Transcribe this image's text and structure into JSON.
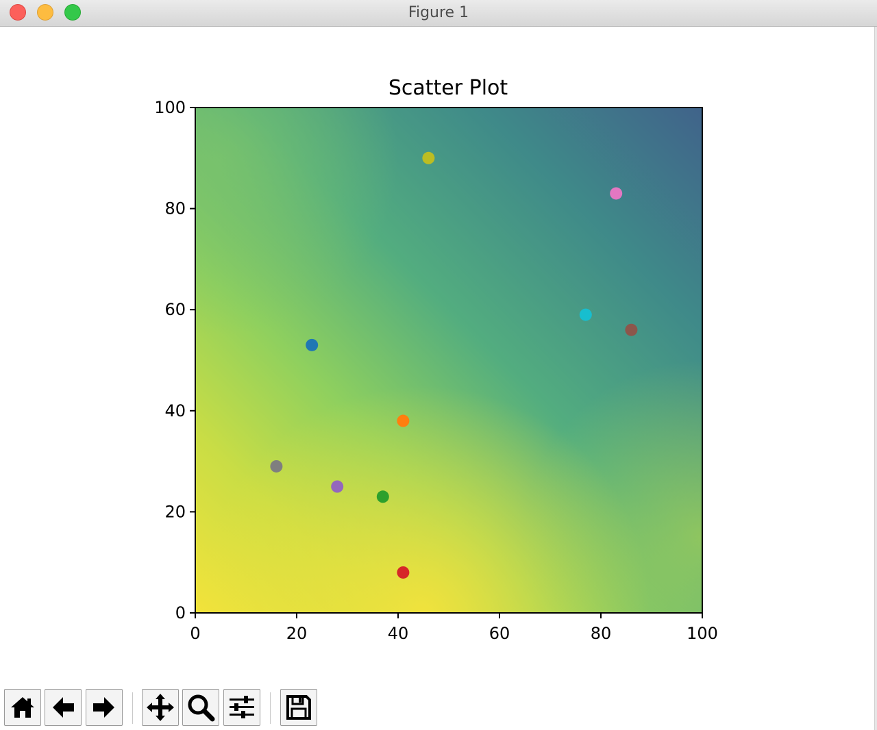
{
  "window": {
    "title": "Figure 1"
  },
  "colors": {
    "background": "#ffffff",
    "close": "#fc605b",
    "minimize": "#fdbc40",
    "maximize": "#34c84a"
  },
  "chart_data": {
    "type": "scatter",
    "title": "Scatter Plot",
    "xlabel": "",
    "ylabel": "",
    "xlim": [
      0,
      100
    ],
    "ylim": [
      0,
      100
    ],
    "xticks": [
      0,
      20,
      40,
      60,
      80,
      100
    ],
    "yticks": [
      0,
      20,
      40,
      60,
      80,
      100
    ],
    "grid": false,
    "background": {
      "type": "heatmap",
      "colormap": "viridis",
      "description_range": "yellow-green at bottom-left, dark blue at top-right"
    },
    "points": [
      {
        "x": 23,
        "y": 53,
        "color": "#1f77b4"
      },
      {
        "x": 41,
        "y": 38,
        "color": "#ff7f0e"
      },
      {
        "x": 37,
        "y": 23,
        "color": "#2ca02c"
      },
      {
        "x": 41,
        "y": 8,
        "color": "#d62728"
      },
      {
        "x": 28,
        "y": 25,
        "color": "#9467bd"
      },
      {
        "x": 86,
        "y": 56,
        "color": "#8c564b"
      },
      {
        "x": 83,
        "y": 83,
        "color": "#e377c2"
      },
      {
        "x": 16,
        "y": 29,
        "color": "#7f7f7f"
      },
      {
        "x": 46,
        "y": 90,
        "color": "#bcbd22"
      },
      {
        "x": 77,
        "y": 59,
        "color": "#17becf"
      }
    ]
  },
  "toolbar": {
    "buttons": [
      {
        "name": "home-button",
        "icon": "home-icon"
      },
      {
        "name": "back-button",
        "icon": "back-arrow-icon"
      },
      {
        "name": "forward-button",
        "icon": "forward-arrow-icon"
      },
      {
        "name": "pan-button",
        "icon": "move-icon"
      },
      {
        "name": "zoom-button",
        "icon": "magnifier-icon"
      },
      {
        "name": "configure-subplots-button",
        "icon": "sliders-icon"
      },
      {
        "name": "save-button",
        "icon": "floppy-disk-icon"
      }
    ]
  }
}
